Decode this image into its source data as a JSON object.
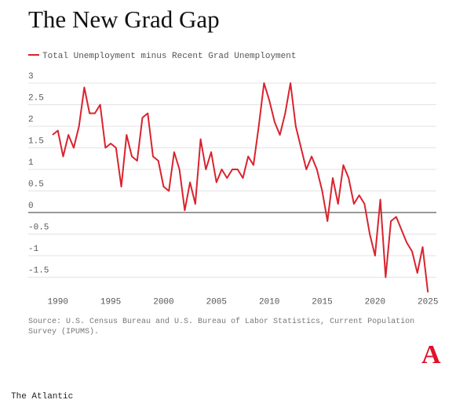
{
  "chart_data": {
    "type": "line",
    "title": "The New Grad Gap",
    "source": "Source: U.S. Census Bureau and U.S. Bureau of Labor Statistics, Current Population Survey (IPUMS).",
    "publisher": "The Atlantic",
    "logo": "A",
    "x": [
      1989.5,
      1990,
      1990.5,
      1991,
      1991.5,
      1992,
      1992.5,
      1993,
      1993.5,
      1994,
      1994.5,
      1995,
      1995.5,
      1996,
      1996.5,
      1997,
      1997.5,
      1998,
      1998.5,
      1999,
      1999.5,
      2000,
      2000.5,
      2001,
      2001.5,
      2002,
      2002.5,
      2003,
      2003.5,
      2004,
      2004.5,
      2005,
      2005.5,
      2006,
      2006.5,
      2007,
      2007.5,
      2008,
      2008.5,
      2009,
      2009.5,
      2010,
      2010.5,
      2011,
      2011.5,
      2012,
      2012.5,
      2013,
      2013.5,
      2014,
      2014.5,
      2015,
      2015.5,
      2016,
      2016.5,
      2017,
      2017.5,
      2018,
      2018.5,
      2019,
      2019.5,
      2020,
      2020.5,
      2021,
      2021.5,
      2022,
      2022.5,
      2023,
      2023.5,
      2024,
      2024.5,
      2025
    ],
    "series": [
      {
        "name": "Total Unemployment minus Recent Grad Unemployment",
        "color": "#d9232e",
        "values": [
          1.8,
          1.9,
          1.3,
          1.8,
          1.5,
          2.0,
          2.9,
          2.3,
          2.3,
          2.5,
          1.5,
          1.6,
          1.5,
          0.6,
          1.8,
          1.3,
          1.2,
          2.2,
          2.3,
          1.3,
          1.2,
          0.6,
          0.5,
          1.4,
          1.0,
          0.05,
          0.7,
          0.2,
          1.7,
          1.0,
          1.4,
          0.7,
          1.0,
          0.8,
          1.0,
          1.0,
          0.8,
          1.3,
          1.1,
          2.0,
          3.0,
          2.6,
          2.1,
          1.8,
          2.3,
          3.0,
          2.0,
          1.5,
          1.0,
          1.3,
          1.0,
          0.5,
          -0.2,
          0.8,
          0.2,
          1.1,
          0.8,
          0.2,
          0.4,
          0.2,
          -0.5,
          -1.0,
          0.3,
          -1.5,
          -0.2,
          -0.1,
          -0.4,
          -0.7,
          -0.9,
          -1.4,
          -0.8,
          -1.85
        ]
      }
    ],
    "xlim": [
      1987.2,
      2025.8
    ],
    "xticks": [
      1990,
      1995,
      2000,
      2005,
      2010,
      2015,
      2020,
      2025
    ],
    "ylim": [
      -1.9,
      3.1
    ],
    "yticks": [
      3,
      2.5,
      2,
      1.5,
      1,
      0.5,
      0,
      -0.5,
      -1,
      -1.5
    ],
    "grid": true
  }
}
